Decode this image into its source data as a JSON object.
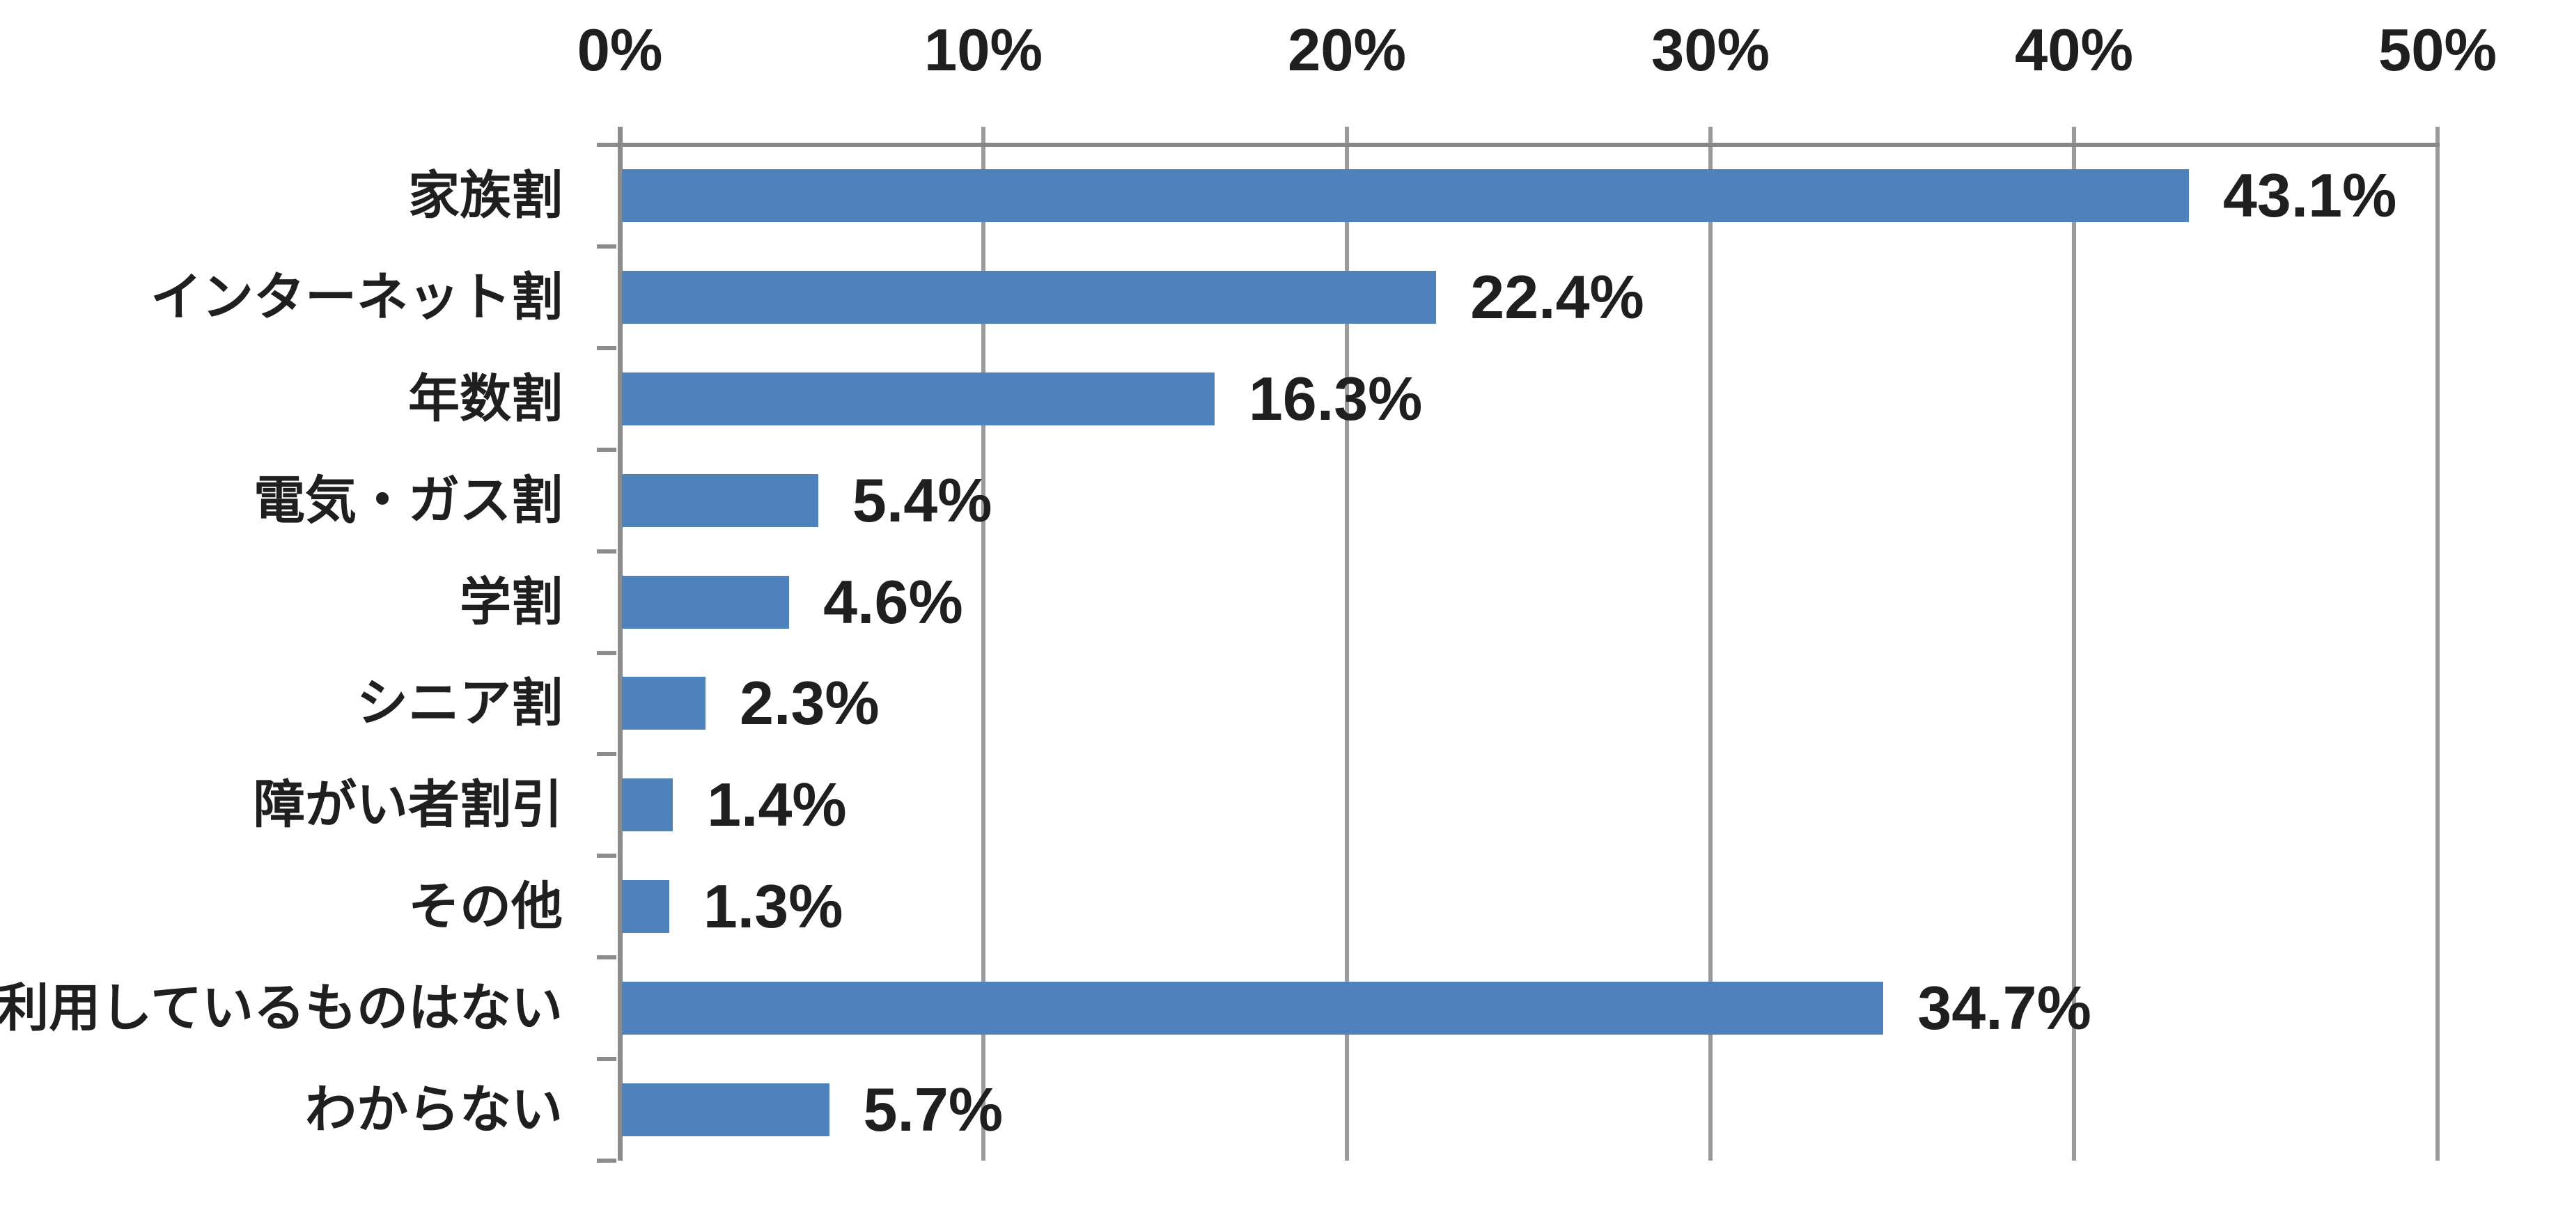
{
  "chart_data": {
    "type": "bar",
    "orientation": "horizontal",
    "title": "",
    "categories": [
      "家族割",
      "インターネット割",
      "年数割",
      "電気・ガス割",
      "学割",
      "シニア割",
      "障がい者割引",
      "その他",
      "利用しているものはない",
      "わからない"
    ],
    "values": [
      43.1,
      22.4,
      16.3,
      5.4,
      4.6,
      2.3,
      1.4,
      1.3,
      34.7,
      5.7
    ],
    "data_labels": [
      "43.1%",
      "22.4%",
      "16.3%",
      "5.4%",
      "4.6%",
      "2.3%",
      "1.4%",
      "1.3%",
      "34.7%",
      "5.7%"
    ],
    "x_axis": {
      "position": "top",
      "min": 0,
      "max": 50,
      "tick_step": 10,
      "tick_labels": [
        "0%",
        "10%",
        "20%",
        "30%",
        "40%",
        "50%"
      ]
    },
    "grid": true,
    "legend": false,
    "colors": {
      "bar_fill": "#4f81bd",
      "gridline": "#9b9b9b",
      "axis_line": "#8c8c8c",
      "text": "#1f1f1f",
      "background": "#ffffff"
    }
  }
}
